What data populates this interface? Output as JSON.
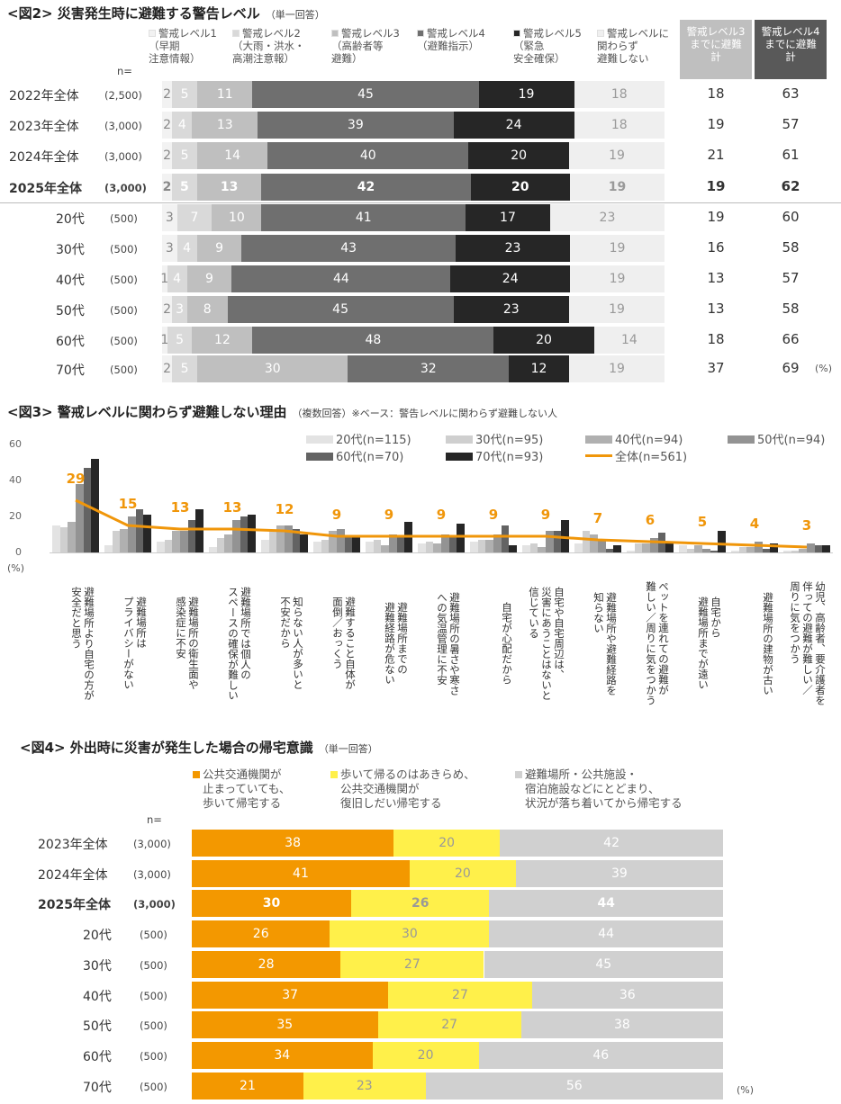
{
  "chart_data": [
    {
      "type": "bar",
      "stacked": true,
      "title": "<図2> 災害発生時に避難する警告レベル",
      "subtitle": "（単一回答）",
      "n_label": "n=",
      "unit": "(%)",
      "legend": [
        "警戒レベル1\n（早期\n注意情報）",
        "警戒レベル2\n（大雨・洪水・\n高潮注意報）",
        "警戒レベル3\n（高齢者等\n避難）",
        "警戒レベル4\n（避難指示）",
        "警戒レベル5\n（緊急\n安全確保）",
        "警戒レベルに\n関わらず\n避難しない"
      ],
      "colors": [
        "#f2f2f2",
        "#d9d9d9",
        "#bfbfbf",
        "#6f6f6f",
        "#262626",
        "#efefef"
      ],
      "sum_headers": [
        "警戒レベル3\nまでに避難\n計",
        "警戒レベル4\nまでに避難\n計"
      ],
      "sum_colors": [
        "#bfbfbf",
        "#595959"
      ],
      "rows": [
        {
          "label": "2022年全体",
          "n": "(2,500)",
          "values": [
            2,
            5,
            11,
            45,
            19,
            18
          ],
          "sum3": 18,
          "sum4": 63,
          "bold": false
        },
        {
          "label": "2023年全体",
          "n": "(3,000)",
          "values": [
            2,
            4,
            13,
            39,
            24,
            18
          ],
          "sum3": 19,
          "sum4": 57,
          "bold": false
        },
        {
          "label": "2024年全体",
          "n": "(3,000)",
          "values": [
            2,
            5,
            14,
            40,
            20,
            19
          ],
          "sum3": 21,
          "sum4": 61,
          "bold": false
        },
        {
          "label": "2025年全体",
          "n": "(3,000)",
          "values": [
            2,
            5,
            13,
            42,
            20,
            19
          ],
          "sum3": 19,
          "sum4": 62,
          "bold": true
        },
        {
          "label": "20代",
          "n": "(500)",
          "values": [
            3,
            7,
            10,
            41,
            17,
            23
          ],
          "sum3": 19,
          "sum4": 60,
          "bold": false
        },
        {
          "label": "30代",
          "n": "(500)",
          "values": [
            3,
            4,
            9,
            43,
            23,
            19
          ],
          "sum3": 16,
          "sum4": 58,
          "bold": false
        },
        {
          "label": "40代",
          "n": "(500)",
          "values": [
            1,
            4,
            9,
            44,
            24,
            19
          ],
          "sum3": 13,
          "sum4": 57,
          "bold": false
        },
        {
          "label": "50代",
          "n": "(500)",
          "values": [
            2,
            3,
            8,
            45,
            23,
            19
          ],
          "sum3": 13,
          "sum4": 58,
          "bold": false
        },
        {
          "label": "60代",
          "n": "(500)",
          "values": [
            1,
            5,
            12,
            48,
            20,
            14
          ],
          "sum3": 18,
          "sum4": 66,
          "bold": false
        },
        {
          "label": "70代",
          "n": "(500)",
          "values": [
            2,
            5,
            30,
            32,
            12,
            19
          ],
          "sum3": 37,
          "sum4": 69,
          "bold": false
        }
      ]
    },
    {
      "type": "bar",
      "title": "<図3> 警戒レベルに関わらず避難しない理由",
      "subtitle": "（複数回答）※ベース：警告レベルに関わらず避難しない人",
      "unit": "(%)",
      "ylim": [
        0,
        60
      ],
      "yticks": [
        0,
        20,
        40,
        60
      ],
      "categories": [
        "避難場所より自宅の方が\n安全だと思う",
        "避難場所は\nプライバシーがない",
        "避難場所の衛生面や\n感染症に不安",
        "避難場所では個人の\nスペースの確保が難しい",
        "知らない人が多いと\n不安だから",
        "避難すること自体が\n面倒／おっくう",
        "避難場所までの\n避難経路が危ない",
        "避難場所の暑さや寒さ\nへの気温管理に不安",
        "自宅が心配だから",
        "自宅や自宅周辺は、\n災害にあうことはないと\n信じている",
        "避難場所や避難経路を\n知らない",
        "ペットを連れての避難が\n難しい／周りに気をつかう",
        "自宅から\n避難場所までが遠い",
        "避難場所の建物が古い",
        "幼児、高齢者、要介護者を\n伴っての避難が難しい／\n周りに気をつかう"
      ],
      "series": [
        {
          "name": "20代(n=115)",
          "color": "#e3e3e3",
          "values": [
            15,
            4,
            6,
            3,
            7,
            6,
            6,
            5,
            6,
            4,
            5,
            1,
            4,
            1,
            1
          ]
        },
        {
          "name": "30代(n=95)",
          "color": "#cfcfcf",
          "values": [
            14,
            12,
            7,
            8,
            12,
            7,
            7,
            6,
            7,
            5,
            12,
            5,
            2,
            3,
            1
          ]
        },
        {
          "name": "40代(n=94)",
          "color": "#b0b0b0",
          "values": [
            17,
            13,
            12,
            10,
            15,
            12,
            4,
            5,
            7,
            3,
            10,
            5,
            4,
            3,
            2
          ]
        },
        {
          "name": "50代(n=94)",
          "color": "#939393",
          "values": [
            38,
            20,
            12,
            18,
            15,
            13,
            10,
            10,
            10,
            12,
            7,
            8,
            2,
            6,
            5
          ]
        },
        {
          "name": "60代(n=70)",
          "color": "#636363",
          "values": [
            47,
            24,
            18,
            20,
            13,
            9,
            9,
            9,
            15,
            12,
            2,
            11,
            1,
            2,
            4
          ]
        },
        {
          "name": "70代(n=93)",
          "color": "#262626",
          "values": [
            52,
            21,
            24,
            21,
            10,
            9,
            17,
            16,
            4,
            18,
            4,
            5,
            12,
            5,
            4
          ]
        }
      ],
      "line": {
        "name": "全体(n=561)",
        "color": "#f0960a",
        "values": [
          29,
          15,
          13,
          13,
          12,
          9,
          9,
          9,
          9,
          9,
          7,
          6,
          5,
          4,
          3
        ]
      }
    },
    {
      "type": "bar",
      "stacked": true,
      "title": "<図4> 外出時に災害が発生した場合の帰宅意識",
      "subtitle": "（単一回答）",
      "n_label": "n=",
      "unit": "(%)",
      "legend": [
        "公共交通機関が\n止まっていても、\n歩いて帰宅する",
        "歩いて帰るのはあきらめ、\n公共交通機関が\n復旧しだい帰宅する",
        "避難場所・公共施設・\n宿泊施設などにとどまり、\n状況が落ち着いてから帰宅する"
      ],
      "colors": [
        "#f39800",
        "#fff04a",
        "#d0d0d0"
      ],
      "rows": [
        {
          "label": "2023年全体",
          "n": "(3,000)",
          "values": [
            38,
            20,
            42
          ],
          "bold": false
        },
        {
          "label": "2024年全体",
          "n": "(3,000)",
          "values": [
            41,
            20,
            39
          ],
          "bold": false
        },
        {
          "label": "2025年全体",
          "n": "(3,000)",
          "values": [
            30,
            26,
            44
          ],
          "bold": true
        },
        {
          "label": "20代",
          "n": "(500)",
          "values": [
            26,
            30,
            44
          ],
          "bold": false
        },
        {
          "label": "30代",
          "n": "(500)",
          "values": [
            28,
            27,
            45
          ],
          "bold": false
        },
        {
          "label": "40代",
          "n": "(500)",
          "values": [
            37,
            27,
            36
          ],
          "bold": false
        },
        {
          "label": "50代",
          "n": "(500)",
          "values": [
            35,
            27,
            38
          ],
          "bold": false
        },
        {
          "label": "60代",
          "n": "(500)",
          "values": [
            34,
            20,
            46
          ],
          "bold": false
        },
        {
          "label": "70代",
          "n": "(500)",
          "values": [
            21,
            23,
            56
          ],
          "bold": false
        }
      ]
    }
  ]
}
